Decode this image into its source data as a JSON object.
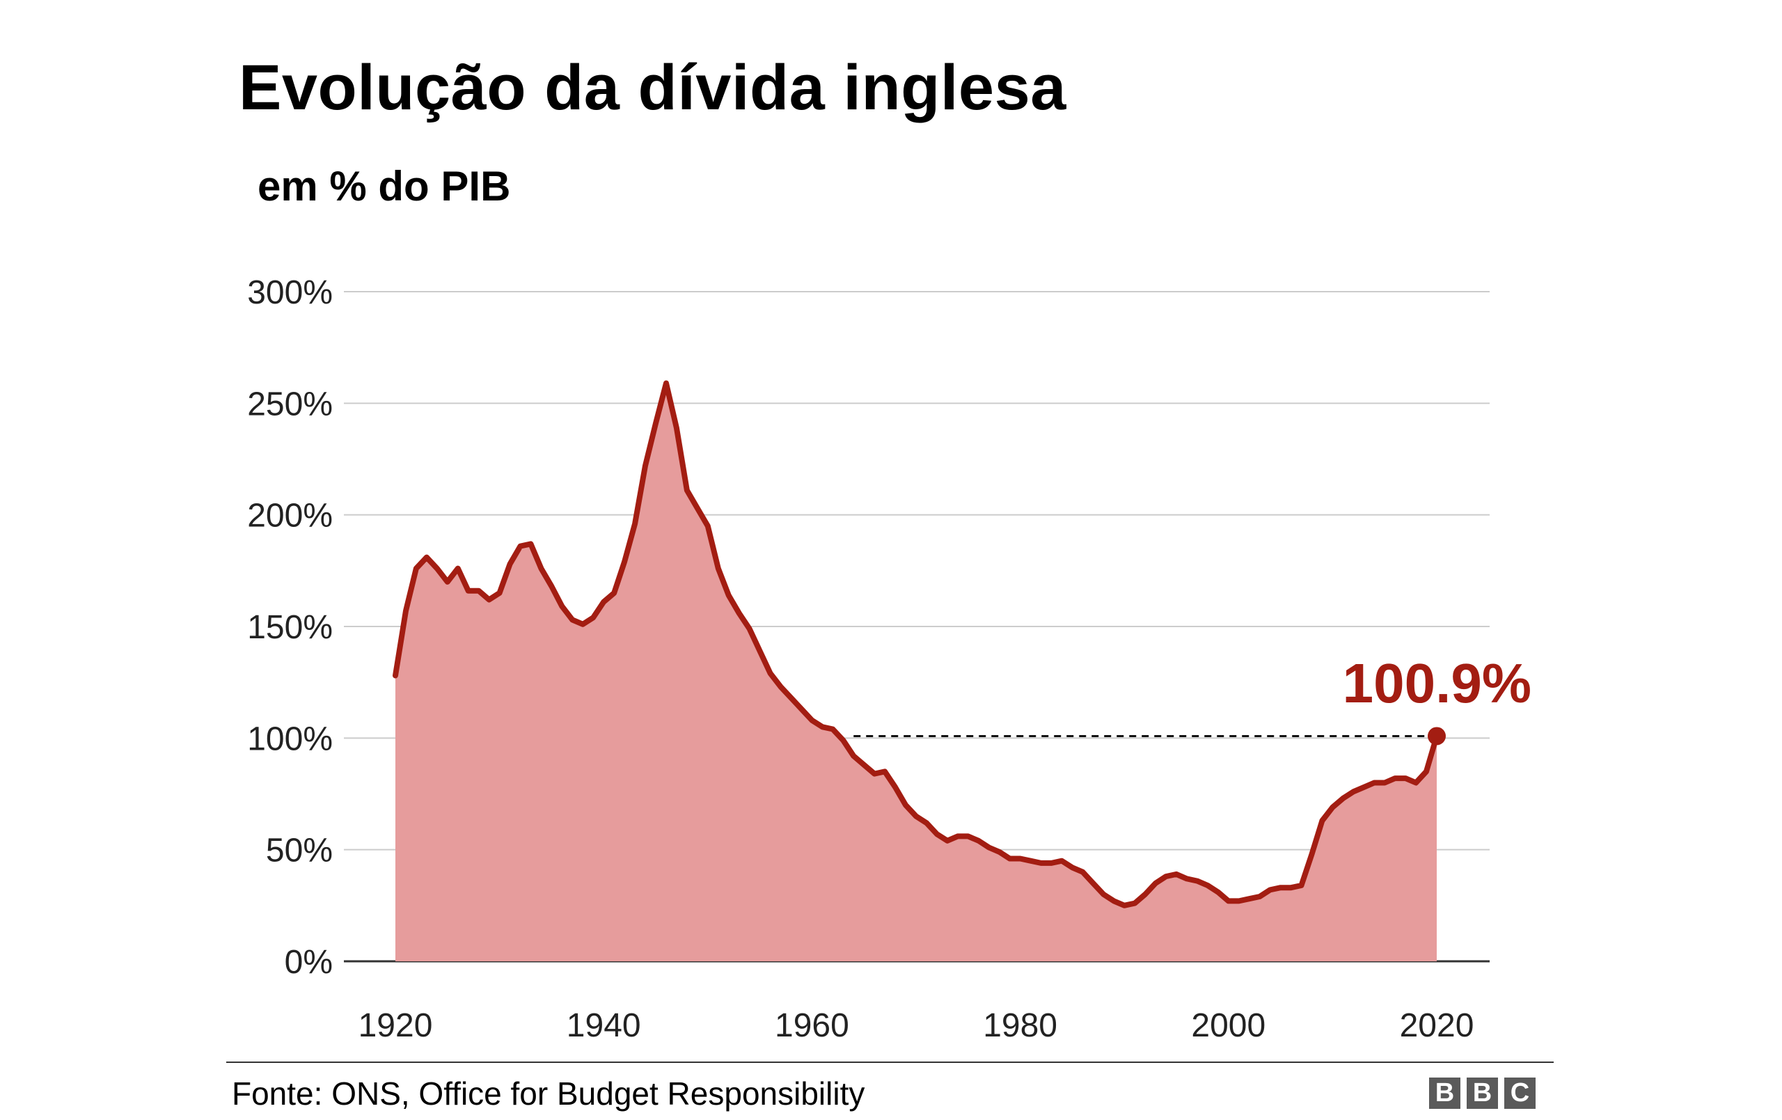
{
  "title": "Evolução da dívida inglesa",
  "subtitle": "em % do PIB",
  "source": "Fonte: ONS, Office for Budget Responsibility",
  "logo": {
    "text": "BBC",
    "letters": [
      "B",
      "B",
      "C"
    ]
  },
  "colors": {
    "line": "#a31d12",
    "fill": "#e69c9c",
    "grid": "#cccccc",
    "axis": "#333333",
    "label": "#a31d12",
    "logo_bg": "#5a5a5a"
  },
  "chart_data": {
    "type": "area",
    "title": "Evolução da dívida inglesa",
    "subtitle": "em % do PIB",
    "xlim": [
      1920,
      2020
    ],
    "ylim": [
      0,
      300
    ],
    "yticks": [
      0,
      50,
      100,
      150,
      200,
      250,
      300
    ],
    "ytick_labels": [
      "0%",
      "50%",
      "100%",
      "150%",
      "200%",
      "250%",
      "300%"
    ],
    "xticks": [
      1920,
      1940,
      1960,
      1980,
      2000,
      2020
    ],
    "xtick_labels": [
      "1920",
      "1940",
      "1960",
      "1980",
      "2000",
      "2020"
    ],
    "grid": true,
    "reference_line": {
      "y": 100.9,
      "x_start": 1964,
      "x_end": 2020,
      "style": "dashed"
    },
    "annotation": {
      "text": "100.9%",
      "x": 2020,
      "y": 100.9
    },
    "series": [
      {
        "x": [
          1920,
          1921,
          1922,
          1923,
          1924,
          1925,
          1926,
          1927,
          1928,
          1929,
          1930,
          1931,
          1932,
          1933,
          1934,
          1935,
          1936,
          1937,
          1938,
          1939,
          1940,
          1941,
          1942,
          1943,
          1944,
          1945,
          1946,
          1947,
          1948,
          1949,
          1950,
          1951,
          1952,
          1953,
          1954,
          1955,
          1956,
          1957,
          1958,
          1959,
          1960,
          1961,
          1962,
          1963,
          1964,
          1965,
          1966,
          1967,
          1968,
          1969,
          1970,
          1971,
          1972,
          1973,
          1974,
          1975,
          1976,
          1977,
          1978,
          1979,
          1980,
          1981,
          1982,
          1983,
          1984,
          1985,
          1986,
          1987,
          1988,
          1989,
          1990,
          1991,
          1992,
          1993,
          1994,
          1995,
          1996,
          1997,
          1998,
          1999,
          2000,
          2001,
          2002,
          2003,
          2004,
          2005,
          2006,
          2007,
          2008,
          2009,
          2010,
          2011,
          2012,
          2013,
          2014,
          2015,
          2016,
          2017,
          2018,
          2019,
          2020
        ],
        "values": [
          128,
          157,
          176,
          181,
          176,
          170,
          176,
          166,
          166,
          162,
          165,
          178,
          186,
          187,
          176,
          168,
          159,
          153,
          151,
          154,
          161,
          165,
          179,
          196,
          222,
          241,
          259,
          239,
          211,
          203,
          195,
          176,
          164,
          156,
          149,
          139,
          129,
          123,
          118,
          113,
          108,
          105,
          104,
          99,
          92,
          88,
          84,
          85,
          78,
          70,
          65,
          62,
          57,
          54,
          56,
          56,
          54,
          51,
          49,
          46,
          46,
          45,
          44,
          44,
          45,
          42,
          40,
          35,
          30,
          27,
          25,
          26,
          30,
          35,
          38,
          39,
          37,
          36,
          34,
          31,
          27,
          27,
          28,
          29,
          32,
          33,
          33,
          34,
          48,
          63,
          69,
          73,
          76,
          78,
          80,
          80,
          82,
          82,
          80,
          85,
          100.9
        ]
      }
    ]
  }
}
